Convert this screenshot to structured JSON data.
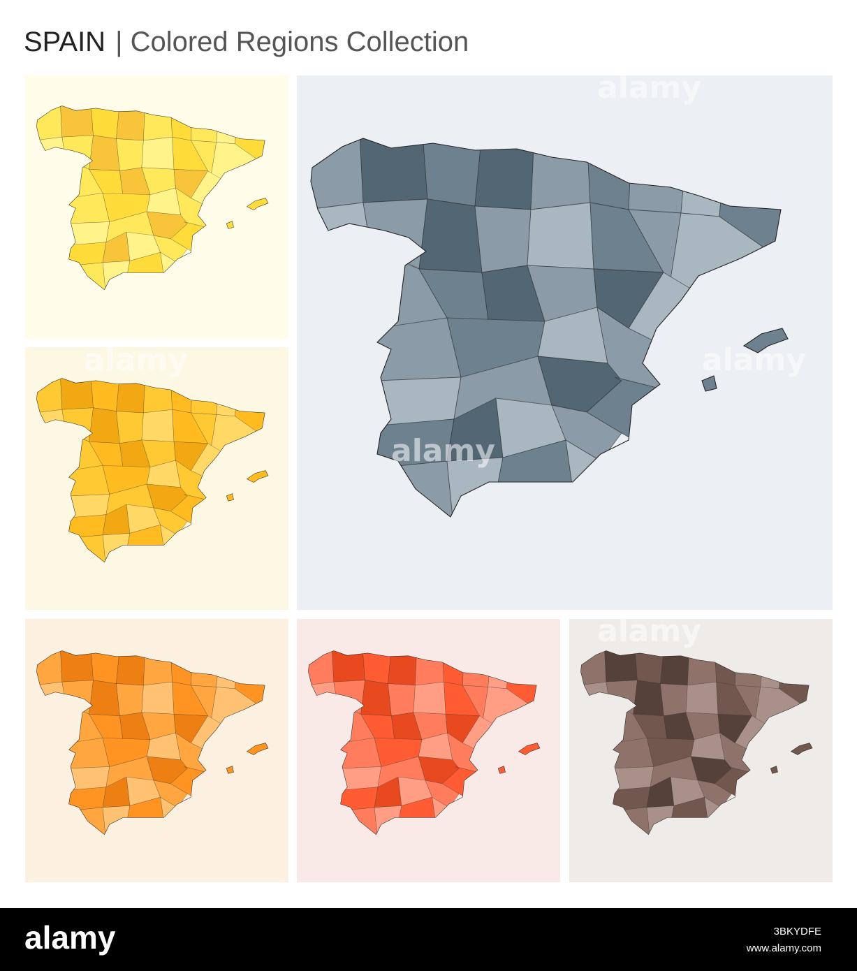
{
  "title": {
    "country": "SPAIN",
    "subtitle": "| Colored Regions Collection"
  },
  "watermark": "alamy",
  "footer": {
    "logo": "alamy",
    "image_id": "3BKYDFE",
    "url": "www.alamy.com"
  }
}
